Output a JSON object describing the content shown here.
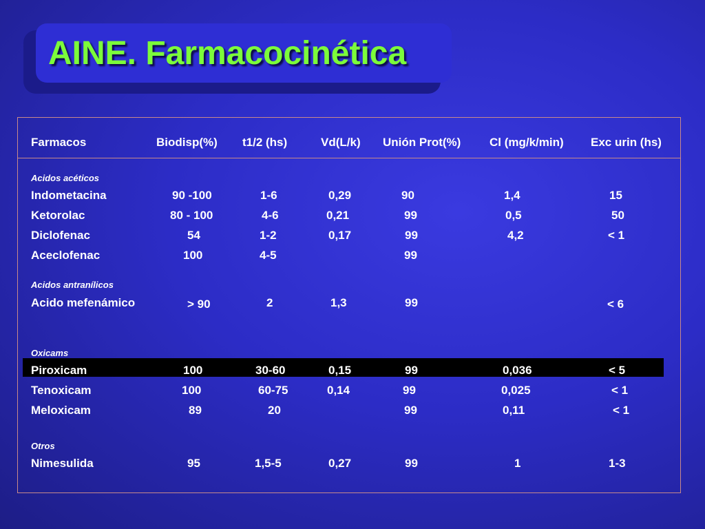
{
  "slide": {
    "title": "AINE. Farmacocinética"
  },
  "table": {
    "headers": [
      "Farmacos",
      "Biodisp(%)",
      "t1/2 (hs)",
      "Vd(L/k)",
      "Unión Prot(%)",
      "Cl (mg/k/min)",
      "Exc urin (hs)"
    ],
    "groups": [
      {
        "category": "Acidos acéticos",
        "rows": [
          [
            "Indometacina",
            "90 -100",
            "1-6",
            "0,29",
            "90",
            "1,4",
            "15"
          ],
          [
            "Ketorolac",
            "80 - 100",
            "4-6",
            "0,21",
            "99",
            "0,5",
            "50"
          ],
          [
            "Diclofenac",
            "54",
            "1-2",
            "0,17",
            "99",
            "4,2",
            "< 1"
          ],
          [
            "Aceclofenac",
            "100",
            "4-5",
            "",
            "99",
            "",
            ""
          ]
        ]
      },
      {
        "category": "Acidos antranílicos",
        "rows": [
          [
            "Acido mefenámico",
            "> 90",
            "2",
            "1,3",
            "99",
            "",
            "< 6"
          ]
        ]
      },
      {
        "category": "Oxicams",
        "rows": [
          [
            "Piroxicam",
            "100",
            "30-60",
            "0,15",
            "99",
            "0,036",
            "< 5"
          ],
          [
            "Tenoxicam",
            "100",
            "60-75",
            "0,14",
            "99",
            "0,025",
            "< 1"
          ],
          [
            "Meloxicam",
            "89",
            "20",
            "",
            "99",
            "0,11",
            "< 1"
          ]
        ]
      },
      {
        "category": "Otros",
        "rows": [
          [
            "Nimesulida",
            "95",
            "1,5-5",
            "0,27",
            "99",
            "1",
            "1-3"
          ]
        ]
      }
    ]
  },
  "colors": {
    "title": "#7cfc3a",
    "background": "#2c2cc6",
    "highlight_row": "#000000"
  }
}
